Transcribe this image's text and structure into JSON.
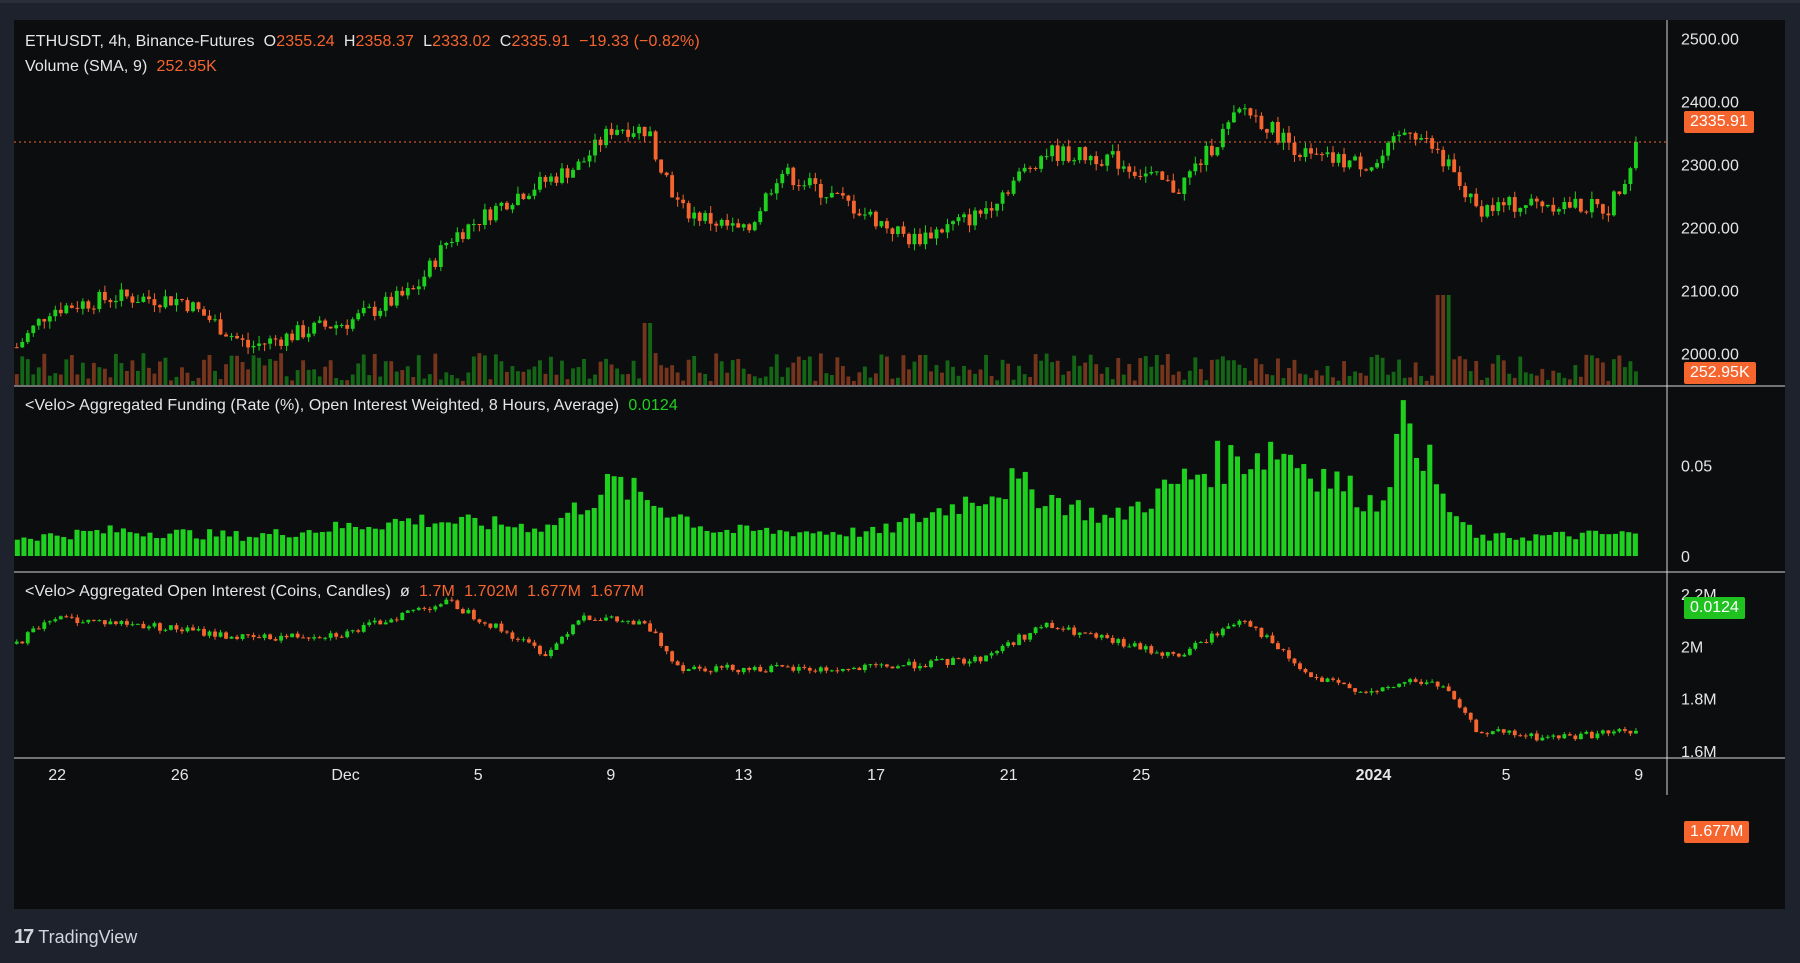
{
  "header": {
    "symbol": "ETHUSDT, 4h, Binance-Futures",
    "o_label": "O",
    "o_value": "2355.24",
    "h_label": "H",
    "h_value": "2358.37",
    "l_label": "L",
    "l_value": "2333.02",
    "c_label": "C",
    "c_value": "2335.91",
    "change": "−19.33 (−0.82%)"
  },
  "volume": {
    "label": "Volume (SMA, 9)",
    "value": "252.95K"
  },
  "funding": {
    "label": "<Velo> Aggregated Funding (Rate (%), Open Interest Weighted, 8 Hours, Average)",
    "value": "0.0124"
  },
  "open_interest": {
    "label": "<Velo> Aggregated Open Interest (Coins, Candles)",
    "symbol": "ø",
    "o": "1.7M",
    "h": "1.702M",
    "l": "1.677M",
    "c": "1.677M"
  },
  "price_tags": {
    "last_price": "2335.91",
    "volume": "252.95K",
    "funding": "0.0124",
    "oi": "1.677M"
  },
  "branding": {
    "logo_mark": "17",
    "logo_text": "TradingView"
  },
  "colors": {
    "up": "#1fd11f",
    "down": "#f7652f",
    "background": "#0c0d0f",
    "frame": "#1e222d"
  },
  "chart_data": [
    {
      "type": "candlestick",
      "title": "ETHUSDT, 4h, Binance-Futures",
      "x_ticks": [
        "22",
        "26",
        "Dec",
        "5",
        "9",
        "13",
        "17",
        "21",
        "25",
        "2024",
        "5",
        "9"
      ],
      "y_ticks": [
        "2500.00",
        "2400.00",
        "2300.00",
        "2200.00",
        "2100.00",
        "2000.00"
      ],
      "ylim": [
        1950,
        2520
      ],
      "last_value": 2335.91,
      "approx_close_path": [
        {
          "date": "Nov 21",
          "close": 2010
        },
        {
          "date": "Nov 22",
          "close": 2070
        },
        {
          "date": "Nov 24",
          "close": 2090
        },
        {
          "date": "Nov 26",
          "close": 2085
        },
        {
          "date": "Nov 28",
          "close": 2010
        },
        {
          "date": "Nov 30",
          "close": 2040
        },
        {
          "date": "Dec 1",
          "close": 2050
        },
        {
          "date": "Dec 3",
          "close": 2100
        },
        {
          "date": "Dec 4",
          "close": 2180
        },
        {
          "date": "Dec 6",
          "close": 2250
        },
        {
          "date": "Dec 8",
          "close": 2300
        },
        {
          "date": "Dec 9",
          "close": 2360
        },
        {
          "date": "Dec 10",
          "close": 2355
        },
        {
          "date": "Dec 11",
          "close": 2230
        },
        {
          "date": "Dec 13",
          "close": 2190
        },
        {
          "date": "Dec 14",
          "close": 2290
        },
        {
          "date": "Dec 16",
          "close": 2240
        },
        {
          "date": "Dec 18",
          "close": 2180
        },
        {
          "date": "Dec 20",
          "close": 2220
        },
        {
          "date": "Dec 22",
          "close": 2320
        },
        {
          "date": "Dec 24",
          "close": 2310
        },
        {
          "date": "Dec 26",
          "close": 2260
        },
        {
          "date": "Dec 28",
          "close": 2390
        },
        {
          "date": "Dec 30",
          "close": 2310
        },
        {
          "date": "Jan 1",
          "close": 2300
        },
        {
          "date": "Jan 2",
          "close": 2360
        },
        {
          "date": "Jan 3",
          "close": 2310
        },
        {
          "date": "Jan 4",
          "close": 2230
        },
        {
          "date": "Jan 6",
          "close": 2240
        },
        {
          "date": "Jan 8",
          "close": 2230
        },
        {
          "date": "Jan 9",
          "close": 2335.91
        }
      ]
    },
    {
      "type": "bar",
      "title": "Volume (SMA, 9)",
      "last_value": "252.95K",
      "spikes": [
        {
          "date": "Dec 10",
          "relative": 0.9
        },
        {
          "date": "Jan 3",
          "relative": 1.0
        }
      ]
    },
    {
      "type": "bar",
      "title": "<Velo> Aggregated Funding (Rate (%), Open Interest Weighted, 8 Hours, Average)",
      "y_ticks": [
        "0.05",
        "0"
      ],
      "ylim": [
        0,
        0.085
      ],
      "last_value": 0.0124,
      "approx_series": [
        {
          "date": "Nov 21",
          "value": 0.01
        },
        {
          "date": "Nov 24",
          "value": 0.014
        },
        {
          "date": "Nov 28",
          "value": 0.011
        },
        {
          "date": "Dec 3",
          "value": 0.02
        },
        {
          "date": "Dec 7",
          "value": 0.016
        },
        {
          "date": "Dec 9",
          "value": 0.04
        },
        {
          "date": "Dec 12",
          "value": 0.014
        },
        {
          "date": "Dec 17",
          "value": 0.013
        },
        {
          "date": "Dec 21",
          "value": 0.04
        },
        {
          "date": "Dec 24",
          "value": 0.02
        },
        {
          "date": "Dec 27",
          "value": 0.05
        },
        {
          "date": "Dec 29",
          "value": 0.06
        },
        {
          "date": "Jan 1",
          "value": 0.028
        },
        {
          "date": "Jan 2",
          "value": 0.08
        },
        {
          "date": "Jan 3",
          "value": 0.03
        },
        {
          "date": "Jan 4",
          "value": 0.01
        },
        {
          "date": "Jan 9",
          "value": 0.0124
        }
      ]
    },
    {
      "type": "candlestick",
      "title": "<Velo> Aggregated Open Interest (Coins, Candles)",
      "y_ticks": [
        "2.2M",
        "2M",
        "1.8M",
        "1.6M"
      ],
      "ylim": [
        1.6,
        2.25
      ],
      "last_value": "1.677M",
      "approx_close_path": [
        {
          "date": "Nov 21",
          "value": 2.01
        },
        {
          "date": "Nov 22",
          "value": 2.11
        },
        {
          "date": "Nov 25",
          "value": 2.08
        },
        {
          "date": "Nov 28",
          "value": 2.03
        },
        {
          "date": "Dec 1",
          "value": 2.05
        },
        {
          "date": "Dec 3",
          "value": 2.14
        },
        {
          "date": "Dec 4",
          "value": 2.17
        },
        {
          "date": "Dec 7",
          "value": 1.97
        },
        {
          "date": "Dec 8",
          "value": 2.12
        },
        {
          "date": "Dec 10",
          "value": 2.08
        },
        {
          "date": "Dec 11",
          "value": 1.92
        },
        {
          "date": "Dec 16",
          "value": 1.91
        },
        {
          "date": "Dec 20",
          "value": 1.95
        },
        {
          "date": "Dec 22",
          "value": 2.08
        },
        {
          "date": "Dec 26",
          "value": 1.96
        },
        {
          "date": "Dec 28",
          "value": 2.11
        },
        {
          "date": "Dec 30",
          "value": 1.88
        },
        {
          "date": "Jan 1",
          "value": 1.82
        },
        {
          "date": "Jan 2",
          "value": 1.87
        },
        {
          "date": "Jan 3",
          "value": 1.85
        },
        {
          "date": "Jan 4",
          "value": 1.68
        },
        {
          "date": "Jan 6",
          "value": 1.65
        },
        {
          "date": "Jan 9",
          "value": 1.677
        }
      ]
    }
  ]
}
